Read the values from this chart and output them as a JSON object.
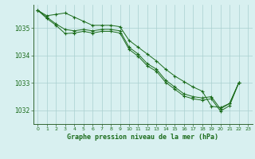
{
  "title": "Graphe pression niveau de la mer (hPa)",
  "background_color": "#d8f0f0",
  "grid_color": "#aacfcf",
  "line_color": "#1a6b1a",
  "marker_color": "#1a6b1a",
  "xlim": [
    -0.5,
    23.5
  ],
  "ylim": [
    1031.5,
    1035.85
  ],
  "yticks": [
    1032,
    1033,
    1034,
    1035
  ],
  "xticks": [
    0,
    1,
    2,
    3,
    4,
    5,
    6,
    7,
    8,
    9,
    10,
    11,
    12,
    13,
    14,
    15,
    16,
    17,
    18,
    19,
    20,
    21,
    22,
    23
  ],
  "line1": [
    1035.65,
    1035.45,
    1035.5,
    1035.55,
    1035.4,
    1035.25,
    1035.1,
    1035.1,
    1035.1,
    1035.05,
    1034.55,
    1034.3,
    1034.05,
    1033.8,
    1033.5,
    1033.25,
    1033.05,
    1032.85,
    1032.7,
    1032.15,
    1032.1,
    1032.25,
    1033.0,
    null
  ],
  "line2": [
    1035.65,
    1035.4,
    1035.15,
    1034.95,
    1034.9,
    1034.95,
    1034.9,
    1034.95,
    1034.95,
    1034.9,
    1034.3,
    1034.05,
    1033.7,
    1033.5,
    1033.1,
    1032.85,
    1032.6,
    1032.5,
    1032.45,
    1032.5,
    1032.05,
    1032.25,
    1033.0,
    null
  ],
  "line3": [
    1035.65,
    1035.35,
    1035.1,
    1034.8,
    1034.82,
    1034.88,
    1034.82,
    1034.88,
    1034.88,
    1034.82,
    1034.22,
    1033.97,
    1033.62,
    1033.42,
    1033.02,
    1032.77,
    1032.52,
    1032.42,
    1032.37,
    1032.42,
    1031.97,
    1032.17,
    1033.0,
    null
  ]
}
